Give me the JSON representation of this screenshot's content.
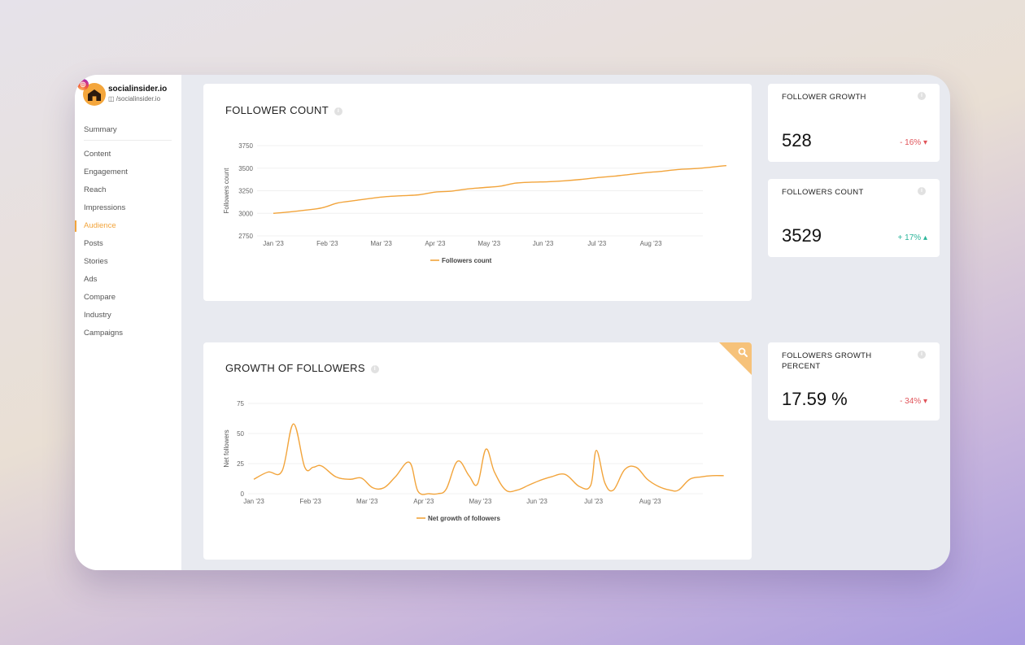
{
  "profile": {
    "name": "socialinsider.io",
    "handle": "/socialinsider.io"
  },
  "nav": {
    "summary": "Summary",
    "items": [
      "Content",
      "Engagement",
      "Reach",
      "Impressions",
      "Audience",
      "Posts",
      "Stories",
      "Ads",
      "Compare",
      "Industry",
      "Campaigns"
    ],
    "active": "Audience"
  },
  "follower_count": {
    "title": "FOLLOWER COUNT",
    "ylabel": "Followers count",
    "legend": "Followers count",
    "y_ticks": [
      "3750",
      "3500",
      "3250",
      "3000",
      "2750"
    ],
    "x_ticks": [
      "Jan '23",
      "Feb '23",
      "Mar '23",
      "Apr '23",
      "May '23",
      "Jun '23",
      "Jul '23",
      "Aug '23"
    ]
  },
  "growth_followers": {
    "title": "GROWTH OF FOLLOWERS",
    "ylabel": "Net followers",
    "legend": "Net growth of followers",
    "y_ticks": [
      "75",
      "50",
      "25",
      "0"
    ],
    "x_ticks": [
      "Jan '23",
      "Feb '23",
      "Mar '23",
      "Apr '23",
      "May '23",
      "Jun '23",
      "Jul '23",
      "Aug '23"
    ]
  },
  "stats": [
    {
      "title": "FOLLOWER GROWTH",
      "value": "528",
      "delta": "- 16%",
      "trend": "down"
    },
    {
      "title": "FOLLOWERS COUNT",
      "value": "3529",
      "delta": "+ 17%",
      "trend": "up"
    },
    {
      "title": "FOLLOWERS GROWTH PERCENT",
      "value": "17.59 %",
      "delta": "- 34%",
      "trend": "down"
    }
  ],
  "colors": {
    "accent": "#f2a43b",
    "negative": "#e0545a",
    "positive": "#2bb59a"
  },
  "chart_data": [
    {
      "type": "line",
      "title": "FOLLOWER COUNT",
      "xlabel": "",
      "ylabel": "Followers count",
      "ylim": [
        2750,
        3750
      ],
      "x_axis": "months Jan '23 - Aug '23 (x = month index, 0 = Jan '23)",
      "series": [
        {
          "name": "Followers count",
          "x": [
            0,
            0.3,
            0.6,
            0.9,
            1.2,
            1.5,
            1.8,
            2.1,
            2.4,
            2.7,
            3.0,
            3.3,
            3.6,
            3.9,
            4.2,
            4.5,
            4.8,
            5.1,
            5.4,
            5.7,
            6.0,
            6.3,
            6.6,
            6.9,
            7.2,
            7.5,
            7.8,
            8.1,
            8.4
          ],
          "values": [
            3000,
            3015,
            3035,
            3060,
            3115,
            3140,
            3165,
            3185,
            3195,
            3205,
            3235,
            3245,
            3270,
            3285,
            3300,
            3335,
            3345,
            3350,
            3360,
            3375,
            3395,
            3410,
            3430,
            3450,
            3465,
            3485,
            3495,
            3510,
            3529
          ]
        }
      ],
      "grid": true,
      "legend_position": "bottom"
    },
    {
      "type": "line",
      "title": "GROWTH OF FOLLOWERS",
      "xlabel": "",
      "ylabel": "Net followers",
      "ylim": [
        0,
        75
      ],
      "x_axis": "months Jan '23 - Aug '23 (x = month index, 0 = Jan '23)",
      "series": [
        {
          "name": "Net growth of followers",
          "x": [
            0,
            0.25,
            0.5,
            0.7,
            0.9,
            1.05,
            1.2,
            1.45,
            1.7,
            1.9,
            2.1,
            2.3,
            2.5,
            2.75,
            2.9,
            3.1,
            3.25,
            3.4,
            3.6,
            3.8,
            3.95,
            4.1,
            4.25,
            4.45,
            4.65,
            4.85,
            5.05,
            5.25,
            5.5,
            5.75,
            5.95,
            6.05,
            6.2,
            6.35,
            6.55,
            6.75,
            6.95,
            7.15,
            7.35,
            7.5,
            7.7,
            7.9,
            8.1,
            8.3
          ],
          "values": [
            12,
            18,
            19,
            58,
            22,
            22,
            23,
            14,
            12,
            13,
            5,
            5,
            14,
            26,
            2,
            0,
            0,
            4,
            27,
            15,
            8,
            37,
            18,
            3,
            3,
            7,
            11,
            14,
            16,
            6,
            7,
            36,
            9,
            3,
            20,
            22,
            12,
            6,
            3,
            3,
            12,
            14,
            15,
            15
          ]
        }
      ],
      "grid": true,
      "legend_position": "bottom"
    }
  ]
}
